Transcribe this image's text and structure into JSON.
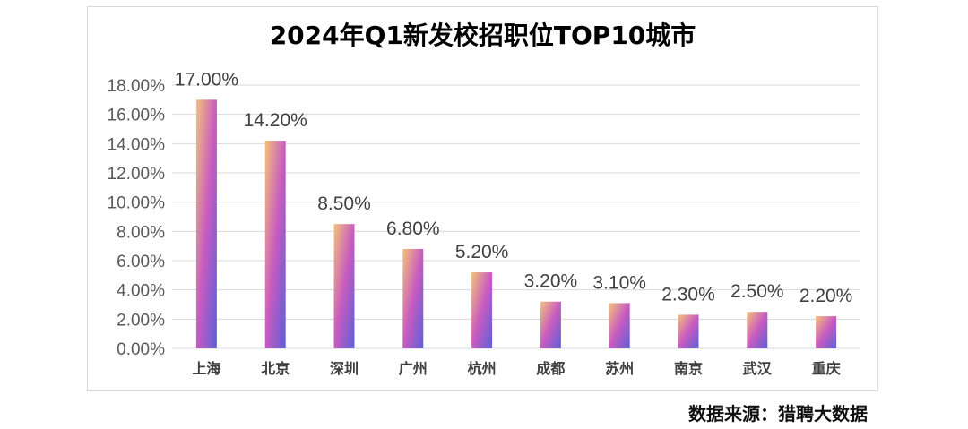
{
  "chart_data": {
    "type": "bar",
    "title": "2024年Q1新发校招职位TOP10城市",
    "categories": [
      "上海",
      "北京",
      "深圳",
      "广州",
      "杭州",
      "成都",
      "苏州",
      "南京",
      "武汉",
      "重庆"
    ],
    "values": [
      17.0,
      14.2,
      8.5,
      6.8,
      5.2,
      3.2,
      3.1,
      2.3,
      2.5,
      2.2
    ],
    "data_labels": [
      "17.00%",
      "14.20%",
      "8.50%",
      "6.80%",
      "5.20%",
      "3.20%",
      "3.10%",
      "2.30%",
      "2.50%",
      "2.20%"
    ],
    "yticks": [
      "0.00%",
      "2.00%",
      "4.00%",
      "6.00%",
      "8.00%",
      "10.00%",
      "12.00%",
      "14.00%",
      "16.00%",
      "18.00%"
    ],
    "ylim": [
      0,
      18
    ],
    "xlabel": "",
    "ylabel": "",
    "grid": true,
    "legend": "none",
    "colors": {
      "bar_top": "#F3C27A",
      "bar_mid": "#C85BC0",
      "bar_bottom": "#5C5FD9",
      "grid": "#d9d9d9"
    }
  },
  "source_text": "数据来源：猎聘大数据"
}
